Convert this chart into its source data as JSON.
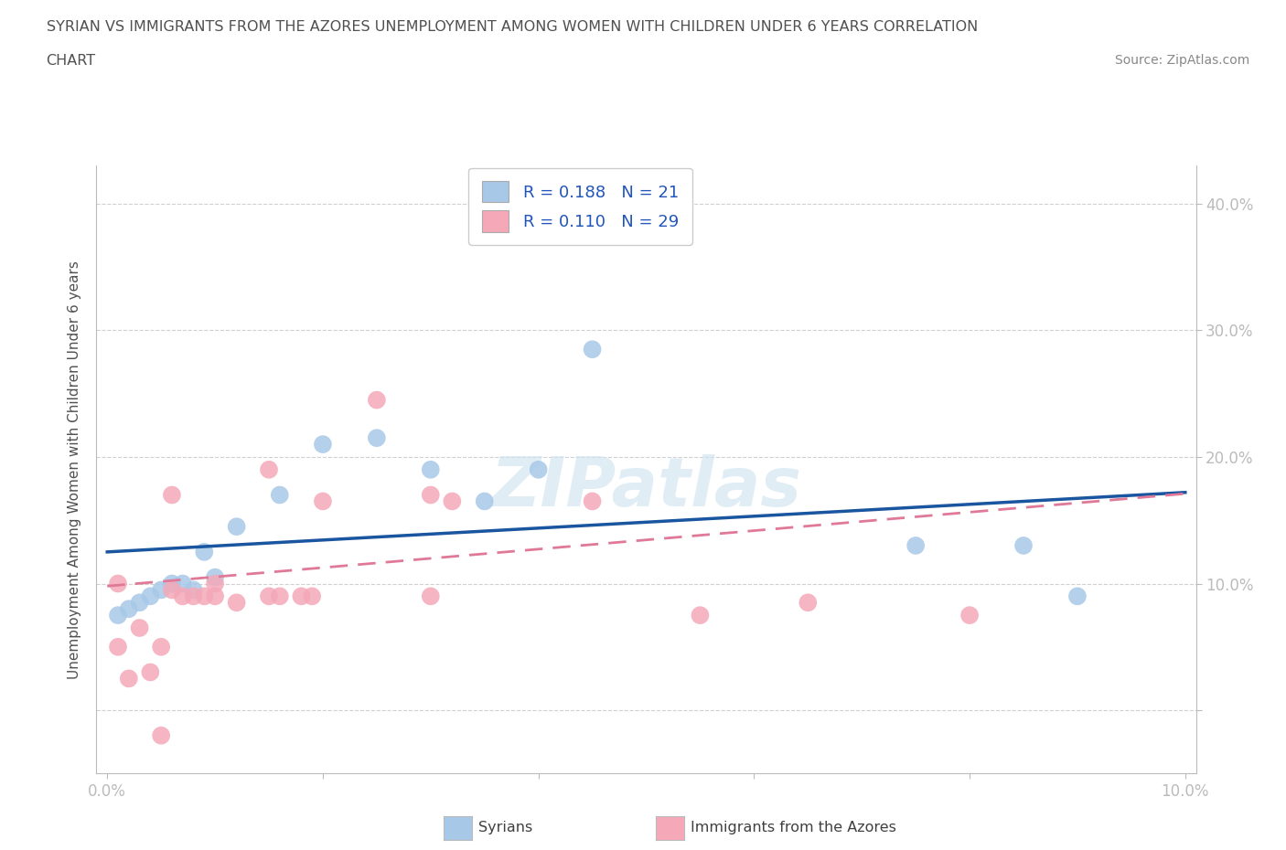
{
  "title_line1": "SYRIAN VS IMMIGRANTS FROM THE AZORES UNEMPLOYMENT AMONG WOMEN WITH CHILDREN UNDER 6 YEARS CORRELATION",
  "title_line2": "CHART",
  "source": "Source: ZipAtlas.com",
  "ylabel": "Unemployment Among Women with Children Under 6 years",
  "xlim": [
    -0.001,
    0.101
  ],
  "ylim": [
    -0.05,
    0.43
  ],
  "xtick_vals": [
    0.0,
    0.02,
    0.04,
    0.06,
    0.08,
    0.1
  ],
  "xtick_labels": [
    "0.0%",
    "",
    "",
    "",
    "",
    "10.0%"
  ],
  "ytick_vals": [
    0.0,
    0.1,
    0.2,
    0.3,
    0.4
  ],
  "ytick_labels_right": [
    "",
    "10.0%",
    "20.0%",
    "30.0%",
    "40.0%"
  ],
  "legend_r1": "R = 0.188   N = 21",
  "legend_r2": "R = 0.110   N = 29",
  "watermark": "ZIPatlas",
  "bg_color": "#ffffff",
  "grid_color": "#d0d0d0",
  "syrian_dot_color": "#a8c8e8",
  "azores_dot_color": "#f4a8b8",
  "syrian_line_color": "#1a55a0",
  "azores_line_color": "#e07898",
  "axis_tick_color": "#4488cc",
  "title_color": "#505050",
  "legend_text_color": "#2255bb",
  "bottom_legend_color": "#404040",
  "source_color": "#888888",
  "syrian_x": [
    0.001,
    0.002,
    0.003,
    0.004,
    0.005,
    0.006,
    0.007,
    0.008,
    0.009,
    0.01,
    0.012,
    0.016,
    0.02,
    0.025,
    0.03,
    0.035,
    0.04,
    0.045,
    0.075,
    0.085,
    0.09
  ],
  "syrian_y": [
    0.075,
    0.08,
    0.085,
    0.09,
    0.095,
    0.1,
    0.1,
    0.095,
    0.125,
    0.105,
    0.145,
    0.17,
    0.21,
    0.215,
    0.19,
    0.165,
    0.19,
    0.285,
    0.13,
    0.13,
    0.09
  ],
  "azores_x": [
    0.001,
    0.001,
    0.002,
    0.003,
    0.004,
    0.005,
    0.005,
    0.006,
    0.006,
    0.007,
    0.008,
    0.009,
    0.01,
    0.01,
    0.012,
    0.015,
    0.015,
    0.016,
    0.018,
    0.019,
    0.02,
    0.025,
    0.03,
    0.03,
    0.032,
    0.045,
    0.055,
    0.065,
    0.08
  ],
  "azores_y": [
    0.1,
    0.05,
    0.025,
    0.065,
    0.03,
    0.05,
    -0.02,
    0.095,
    0.17,
    0.09,
    0.09,
    0.09,
    0.09,
    0.1,
    0.085,
    0.09,
    0.19,
    0.09,
    0.09,
    0.09,
    0.165,
    0.245,
    0.09,
    0.17,
    0.165,
    0.165,
    0.075,
    0.085,
    0.075
  ]
}
